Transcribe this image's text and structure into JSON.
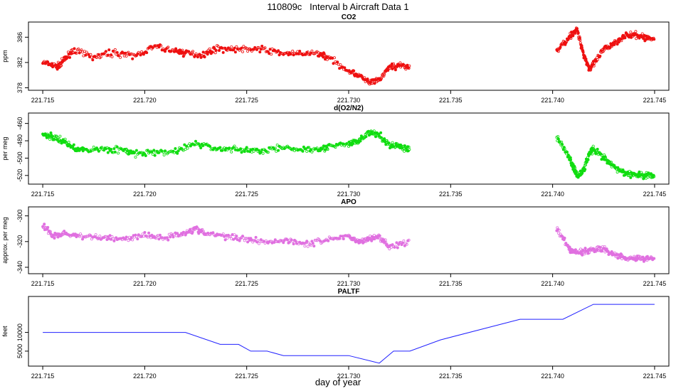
{
  "figure": {
    "title": "110809c   Interval b Aircraft Data 1",
    "xlabel": "day of year"
  },
  "chart_data": [
    {
      "type": "scatter",
      "title": "CO2",
      "ylabel": "ppm",
      "xlim": [
        221.7143,
        221.7457
      ],
      "ylim": [
        377.6,
        388.4
      ],
      "xticks": [
        "221.715",
        "221.720",
        "221.725",
        "221.730",
        "221.735",
        "221.740",
        "221.745"
      ],
      "yticks": [
        "378",
        "382",
        "386"
      ],
      "color": "#ee1111",
      "series": [
        {
          "x": [
            221.715,
            221.7157,
            221.716,
            221.7165,
            221.7175,
            221.7185,
            221.7195,
            221.7205,
            221.7215,
            221.722,
            221.7228,
            221.7235,
            221.7245,
            221.7255,
            221.7265,
            221.7275,
            221.7285,
            221.729,
            221.73,
            221.7305,
            221.731,
            221.7315,
            221.732,
            221.7325,
            221.733
          ],
          "y": [
            382.0,
            381.3,
            382.2,
            384.0,
            382.8,
            383.6,
            383.0,
            384.5,
            383.8,
            383.5,
            383.2,
            384.2,
            384.1,
            384.2,
            383.6,
            383.3,
            383.5,
            382.8,
            380.7,
            380.0,
            378.8,
            379.2,
            381.3,
            381.5,
            381.3
          ]
        },
        {
          "x": [
            221.7402,
            221.7408,
            221.7412,
            221.7415,
            221.7418,
            221.742,
            221.7425,
            221.743,
            221.7435,
            221.744,
            221.7445,
            221.745
          ],
          "y": [
            383.8,
            386.0,
            387.2,
            383.5,
            381.0,
            381.7,
            384.0,
            385.0,
            386.2,
            386.3,
            386.0,
            385.6
          ]
        }
      ]
    },
    {
      "type": "scatter",
      "title": "d(O2/N2)",
      "ylabel": "per meg",
      "xlim": [
        221.7143,
        221.7457
      ],
      "ylim": [
        -530,
        -448
      ],
      "xticks": [
        "221.715",
        "221.720",
        "221.725",
        "221.730",
        "221.735",
        "221.740",
        "221.745"
      ],
      "yticks": [
        "-460",
        "-480",
        "-500",
        "-520"
      ],
      "color": "#11dd11",
      "series": [
        {
          "x": [
            221.715,
            221.7155,
            221.716,
            221.7165,
            221.717,
            221.718,
            221.719,
            221.7195,
            221.7205,
            221.7215,
            221.7225,
            221.7235,
            221.7245,
            221.7255,
            221.7265,
            221.7275,
            221.7285,
            221.729,
            221.73,
            221.7305,
            221.731,
            221.7315,
            221.732,
            221.7325,
            221.733
          ],
          "y": [
            -472,
            -476,
            -480,
            -488,
            -491,
            -489,
            -491,
            -495,
            -494,
            -492,
            -483,
            -489,
            -490,
            -492,
            -488,
            -490,
            -489,
            -487,
            -484,
            -480,
            -470,
            -474,
            -485,
            -486,
            -490
          ]
        },
        {
          "x": [
            221.7402,
            221.7408,
            221.741,
            221.7412,
            221.7415,
            221.7418,
            221.742,
            221.7425,
            221.743,
            221.7435,
            221.744,
            221.7445,
            221.745
          ],
          "y": [
            -476,
            -498,
            -510,
            -520,
            -515,
            -495,
            -490,
            -500,
            -510,
            -517,
            -519,
            -520,
            -520
          ]
        }
      ]
    },
    {
      "type": "scatter",
      "title": "APO",
      "ylabel": "approx. per meg",
      "xlim": [
        221.7143,
        221.7457
      ],
      "ylim": [
        -345,
        -293
      ],
      "xticks": [
        "221.715",
        "221.720",
        "221.725",
        "221.730",
        "221.735",
        "221.740",
        "221.745"
      ],
      "yticks": [
        "-300",
        "-320",
        "-340"
      ],
      "color": "#e070e0",
      "series": [
        {
          "x": [
            221.715,
            221.7155,
            221.716,
            221.717,
            221.718,
            221.719,
            221.72,
            221.721,
            221.722,
            221.7225,
            221.723,
            221.724,
            221.725,
            221.726,
            221.727,
            221.728,
            221.729,
            221.73,
            221.7305,
            221.731,
            221.7315,
            221.732,
            221.733
          ],
          "y": [
            -307,
            -316,
            -314,
            -316,
            -317,
            -318,
            -315,
            -317,
            -313,
            -310,
            -314,
            -316,
            -318,
            -320,
            -319,
            -322,
            -318,
            -316,
            -320,
            -318,
            -316,
            -324,
            -320
          ]
        },
        {
          "x": [
            221.7402,
            221.7408,
            221.741,
            221.7415,
            221.742,
            221.7425,
            221.743,
            221.7435,
            221.744,
            221.7445,
            221.745
          ],
          "y": [
            -310,
            -326,
            -328,
            -328,
            -326,
            -326,
            -330,
            -332,
            -333,
            -333,
            -333
          ]
        }
      ]
    },
    {
      "type": "line",
      "title": "PALTF",
      "ylabel": "feet",
      "xlim": [
        221.7143,
        221.7457
      ],
      "ylim": [
        1000,
        19600
      ],
      "xticks": [
        "221.715",
        "221.720",
        "221.725",
        "221.730",
        "221.735",
        "221.740",
        "221.745"
      ],
      "yticks": [
        "5000",
        "10000"
      ],
      "color": "#2020ff",
      "x": [
        221.715,
        221.7198,
        221.722,
        221.7237,
        221.7246,
        221.7252,
        221.726,
        221.7268,
        221.73,
        221.7315,
        221.7322,
        221.733,
        221.7345,
        221.7384,
        221.7405,
        221.742,
        221.745
      ],
      "y": [
        10000,
        10000,
        10000,
        6800,
        6800,
        5000,
        5000,
        3800,
        3800,
        1800,
        5000,
        5000,
        8000,
        13500,
        13500,
        17500,
        17500
      ]
    }
  ]
}
